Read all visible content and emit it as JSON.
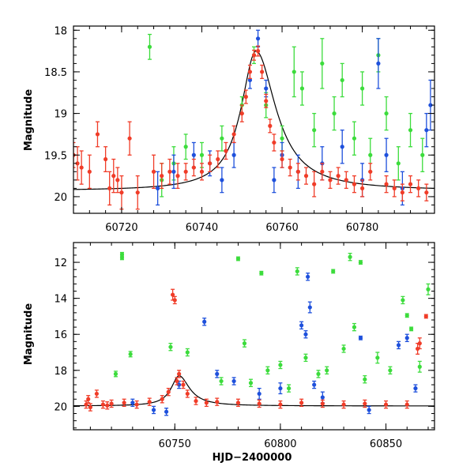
{
  "chart_data": [
    {
      "type": "scatter",
      "panel": "top",
      "xlabel": "",
      "ylabel": "Magnitude",
      "xlim": [
        60708,
        60798
      ],
      "ylim": [
        20.2,
        17.95
      ],
      "y_inverted": true,
      "x_ticks": [
        60720,
        60740,
        60760,
        60780
      ],
      "y_ticks": [
        18,
        18.5,
        19,
        19.5,
        20
      ],
      "y_tick_labels": [
        "18",
        "18.5",
        "19",
        "19.5",
        "20"
      ],
      "grid": false,
      "legend": "none",
      "model_curve": {
        "color": "#000000",
        "peak_x": 60753.5,
        "peak_y": 18.25,
        "baseline": 19.93
      },
      "series": [
        {
          "color": "#3cdc3c",
          "points": [
            [
              60727,
              18.2,
              0.15
            ],
            [
              60730,
              19.8,
              0.2
            ],
            [
              60733,
              19.6,
              0.2
            ],
            [
              60736,
              19.4,
              0.15
            ],
            [
              60740,
              19.5,
              0.15
            ],
            [
              60745,
              19.3,
              0.15
            ],
            [
              60750,
              18.9,
              0.1
            ],
            [
              60753,
              18.3,
              0.1
            ],
            [
              60756,
              18.9,
              0.15
            ],
            [
              60760,
              19.3,
              0.15
            ],
            [
              60763,
              18.5,
              0.3
            ],
            [
              60765,
              18.7,
              0.2
            ],
            [
              60768,
              19.2,
              0.2
            ],
            [
              60770,
              18.4,
              0.3
            ],
            [
              60773,
              19.0,
              0.2
            ],
            [
              60775,
              18.6,
              0.2
            ],
            [
              60778,
              19.3,
              0.2
            ],
            [
              60780,
              18.7,
              0.2
            ],
            [
              60782,
              19.5,
              0.2
            ],
            [
              60784,
              18.3,
              0.2
            ],
            [
              60786,
              19.0,
              0.2
            ],
            [
              60789,
              19.6,
              0.2
            ],
            [
              60792,
              19.2,
              0.2
            ],
            [
              60795,
              19.5,
              0.2
            ]
          ]
        },
        {
          "color": "#1e50dc",
          "points": [
            [
              60729,
              19.9,
              0.2
            ],
            [
              60733,
              19.7,
              0.2
            ],
            [
              60738,
              19.5,
              0.15
            ],
            [
              60742,
              19.6,
              0.15
            ],
            [
              60745,
              19.8,
              0.15
            ],
            [
              60748,
              19.5,
              0.15
            ],
            [
              60752,
              18.6,
              0.1
            ],
            [
              60754,
              18.1,
              0.1
            ],
            [
              60756,
              18.7,
              0.1
            ],
            [
              60758,
              19.8,
              0.15
            ],
            [
              60760,
              19.5,
              0.15
            ],
            [
              60764,
              19.7,
              0.2
            ],
            [
              60770,
              19.6,
              0.2
            ],
            [
              60775,
              19.4,
              0.2
            ],
            [
              60780,
              19.8,
              0.2
            ],
            [
              60784,
              18.4,
              0.3
            ],
            [
              60786,
              19.5,
              0.2
            ],
            [
              60790,
              19.9,
              0.2
            ],
            [
              60796,
              19.2,
              0.2
            ],
            [
              60797,
              18.9,
              0.3
            ]
          ]
        },
        {
          "color": "#f03c28",
          "points": [
            [
              60708,
              19.5,
              0.15
            ],
            [
              60709,
              19.6,
              0.2
            ],
            [
              60710,
              19.65,
              0.2
            ],
            [
              60712,
              19.7,
              0.2
            ],
            [
              60714,
              19.25,
              0.15
            ],
            [
              60716,
              19.55,
              0.15
            ],
            [
              60717,
              19.9,
              0.2
            ],
            [
              60718,
              19.75,
              0.2
            ],
            [
              60719,
              19.8,
              0.15
            ],
            [
              60720,
              19.95,
              0.2
            ],
            [
              60722,
              19.3,
              0.2
            ],
            [
              60724,
              19.95,
              0.2
            ],
            [
              60728,
              19.7,
              0.2
            ],
            [
              60730,
              19.75,
              0.15
            ],
            [
              60732,
              19.7,
              0.15
            ],
            [
              60734,
              19.75,
              0.15
            ],
            [
              60736,
              19.7,
              0.1
            ],
            [
              60738,
              19.65,
              0.1
            ],
            [
              60740,
              19.7,
              0.1
            ],
            [
              60742,
              19.6,
              0.1
            ],
            [
              60744,
              19.55,
              0.1
            ],
            [
              60746,
              19.45,
              0.1
            ],
            [
              60748,
              19.25,
              0.1
            ],
            [
              60750,
              19.0,
              0.1
            ],
            [
              60751,
              18.8,
              0.08
            ],
            [
              60752,
              18.5,
              0.08
            ],
            [
              60753,
              18.3,
              0.06
            ],
            [
              60754,
              18.25,
              0.06
            ],
            [
              60755,
              18.5,
              0.08
            ],
            [
              60756,
              18.85,
              0.08
            ],
            [
              60757,
              19.15,
              0.08
            ],
            [
              60758,
              19.35,
              0.1
            ],
            [
              60760,
              19.55,
              0.1
            ],
            [
              60762,
              19.65,
              0.1
            ],
            [
              60764,
              19.7,
              0.1
            ],
            [
              60766,
              19.75,
              0.1
            ],
            [
              60768,
              19.85,
              0.15
            ],
            [
              60770,
              19.7,
              0.1
            ],
            [
              60772,
              19.8,
              0.1
            ],
            [
              60774,
              19.75,
              0.1
            ],
            [
              60776,
              19.8,
              0.1
            ],
            [
              60778,
              19.85,
              0.1
            ],
            [
              60780,
              19.9,
              0.1
            ],
            [
              60782,
              19.7,
              0.1
            ],
            [
              60786,
              19.85,
              0.1
            ],
            [
              60788,
              19.9,
              0.1
            ],
            [
              60790,
              19.95,
              0.1
            ],
            [
              60792,
              19.85,
              0.1
            ],
            [
              60794,
              19.9,
              0.1
            ],
            [
              60796,
              19.95,
              0.1
            ]
          ]
        }
      ]
    },
    {
      "type": "scatter",
      "panel": "bottom",
      "xlabel": "HJD−2400000",
      "ylabel": "Magnitude",
      "xlim": [
        60702,
        60873
      ],
      "ylim": [
        21.3,
        10.9
      ],
      "y_inverted": true,
      "x_ticks": [
        60750,
        60800,
        60850
      ],
      "y_ticks": [
        12,
        14,
        16,
        18,
        20
      ],
      "y_tick_labels": [
        "12",
        "14",
        "16",
        "18",
        "20"
      ],
      "grid": false,
      "legend": "none",
      "model_curve": {
        "color": "#000000",
        "peak_x": 60752,
        "peak_y": 18.3,
        "baseline": 19.98
      },
      "series": [
        {
          "color": "#3cdc3c",
          "points": [
            [
              60725,
              11.55,
              0.1
            ],
            [
              60725,
              11.75,
              0.1
            ],
            [
              60722,
              18.2,
              0.15
            ],
            [
              60729,
              17.1,
              0.15
            ],
            [
              60748,
              16.7,
              0.2
            ],
            [
              60756,
              17.0,
              0.2
            ],
            [
              60772,
              18.6,
              0.2
            ],
            [
              60780,
              11.8,
              0.1
            ],
            [
              60783,
              16.5,
              0.2
            ],
            [
              60786,
              18.7,
              0.2
            ],
            [
              60791,
              12.6,
              0.1
            ],
            [
              60794,
              18.0,
              0.2
            ],
            [
              60800,
              17.7,
              0.2
            ],
            [
              60804,
              19.0,
              0.2
            ],
            [
              60808,
              12.5,
              0.2
            ],
            [
              60812,
              17.3,
              0.2
            ],
            [
              60818,
              18.2,
              0.2
            ],
            [
              60822,
              18.0,
              0.2
            ],
            [
              60825,
              12.5,
              0.1
            ],
            [
              60830,
              16.8,
              0.2
            ],
            [
              60833,
              11.7,
              0.2
            ],
            [
              60835,
              15.6,
              0.2
            ],
            [
              60838,
              12.0,
              0.1
            ],
            [
              60840,
              18.5,
              0.2
            ],
            [
              60846,
              17.3,
              0.3
            ],
            [
              60852,
              18.0,
              0.2
            ],
            [
              60858,
              14.1,
              0.2
            ],
            [
              60860,
              14.95,
              0.1
            ],
            [
              60862,
              15.7,
              0.1
            ],
            [
              60866,
              17.8,
              0.3
            ],
            [
              60870,
              13.5,
              0.3
            ]
          ]
        },
        {
          "color": "#1e50dc",
          "points": [
            [
              60730,
              19.8,
              0.2
            ],
            [
              60740,
              20.2,
              0.2
            ],
            [
              60746,
              20.3,
              0.2
            ],
            [
              60752,
              18.8,
              0.2
            ],
            [
              60764,
              15.3,
              0.2
            ],
            [
              60770,
              18.2,
              0.2
            ],
            [
              60778,
              18.6,
              0.2
            ],
            [
              60790,
              19.3,
              0.3
            ],
            [
              60800,
              19.0,
              0.3
            ],
            [
              60810,
              15.5,
              0.2
            ],
            [
              60812,
              16.0,
              0.2
            ],
            [
              60813,
              12.8,
              0.2
            ],
            [
              60814,
              14.5,
              0.3
            ],
            [
              60816,
              18.8,
              0.2
            ],
            [
              60820,
              19.5,
              0.3
            ],
            [
              60838,
              16.2,
              0.1
            ],
            [
              60842,
              20.2,
              0.2
            ],
            [
              60856,
              16.6,
              0.2
            ],
            [
              60860,
              16.2,
              0.2
            ],
            [
              60864,
              19.0,
              0.2
            ]
          ]
        },
        {
          "color": "#f03c28",
          "points": [
            [
              60708,
              19.9,
              0.2
            ],
            [
              60709,
              19.6,
              0.2
            ],
            [
              60710,
              20.05,
              0.2
            ],
            [
              60713,
              19.3,
              0.2
            ],
            [
              60716,
              19.9,
              0.2
            ],
            [
              60718,
              19.95,
              0.2
            ],
            [
              60720,
              19.85,
              0.2
            ],
            [
              60726,
              19.8,
              0.2
            ],
            [
              60732,
              19.9,
              0.2
            ],
            [
              60738,
              19.75,
              0.2
            ],
            [
              60744,
              19.6,
              0.2
            ],
            [
              60747,
              19.2,
              0.2
            ],
            [
              60749,
              13.8,
              0.3
            ],
            [
              60750,
              14.1,
              0.2
            ],
            [
              60751,
              18.6,
              0.2
            ],
            [
              60752,
              18.2,
              0.2
            ],
            [
              60754,
              18.8,
              0.2
            ],
            [
              60756,
              19.3,
              0.2
            ],
            [
              60760,
              19.7,
              0.2
            ],
            [
              60765,
              19.8,
              0.2
            ],
            [
              60770,
              19.75,
              0.2
            ],
            [
              60780,
              19.8,
              0.2
            ],
            [
              60790,
              19.85,
              0.2
            ],
            [
              60800,
              19.9,
              0.2
            ],
            [
              60810,
              19.8,
              0.2
            ],
            [
              60820,
              19.85,
              0.2
            ],
            [
              60830,
              19.9,
              0.2
            ],
            [
              60840,
              19.85,
              0.2
            ],
            [
              60850,
              19.9,
              0.2
            ],
            [
              60860,
              19.9,
              0.2
            ],
            [
              60865,
              16.8,
              0.3
            ],
            [
              60866,
              16.5,
              0.3
            ],
            [
              60869,
              15.0,
              0.1
            ]
          ]
        }
      ]
    }
  ]
}
